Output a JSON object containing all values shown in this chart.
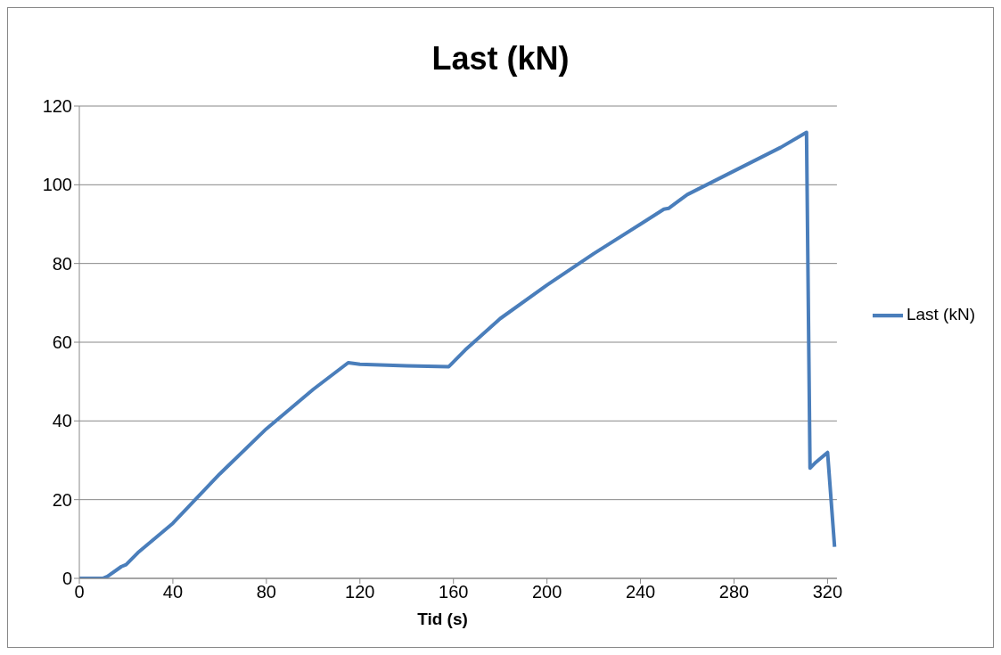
{
  "chart_data": {
    "type": "line",
    "title": "Last (kN)",
    "xlabel": "Tid (s)",
    "xlim": [
      0,
      324
    ],
    "xticks": [
      0,
      40,
      80,
      120,
      160,
      200,
      240,
      280,
      320
    ],
    "ylim": [
      0,
      120
    ],
    "yticks": [
      0,
      20,
      40,
      60,
      80,
      100,
      120
    ],
    "grid": "y",
    "legend": "right",
    "marker": "none",
    "line_style": "solid",
    "series": [
      {
        "name": "Last (kN)",
        "color": "#4a7ebb",
        "x": [
          0,
          10,
          12,
          18,
          20,
          25,
          40,
          60,
          80,
          100,
          115,
          120,
          140,
          158,
          160,
          165,
          180,
          200,
          220,
          240,
          250,
          252,
          260,
          280,
          300,
          311,
          312.5,
          315,
          320,
          323
        ],
        "values": [
          0,
          0,
          0.5,
          3,
          3.5,
          6.5,
          14,
          26.5,
          38,
          48,
          54.8,
          54.4,
          54,
          53.8,
          55,
          58,
          66,
          74.5,
          82.5,
          90,
          93.8,
          94,
          97.5,
          103.5,
          109.5,
          113.3,
          28,
          29.5,
          32,
          8
        ]
      }
    ]
  }
}
